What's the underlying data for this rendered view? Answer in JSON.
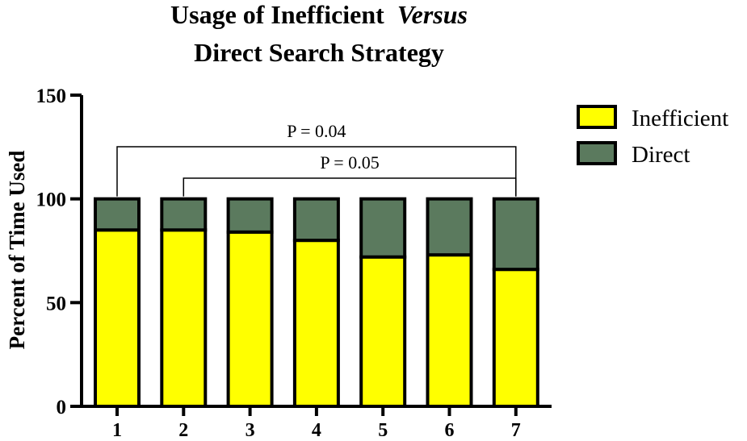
{
  "colors": {
    "inefficient": "#ffff00",
    "direct": "#5b7a5e",
    "outline": "#000000"
  },
  "chart_data": {
    "type": "bar",
    "stacked": true,
    "title_line1_prefix": "Usage of Inefficient",
    "title_line1_italic": "Versus",
    "title_line2": "Direct Search Strategy",
    "xlabel": "",
    "ylabel": "Percent of Time Used",
    "ylim": [
      0,
      150
    ],
    "yticks": [
      "0",
      "50",
      "100",
      "150"
    ],
    "categories": [
      "1",
      "2",
      "3",
      "4",
      "5",
      "6",
      "7"
    ],
    "series": [
      {
        "name": "Inefficient",
        "color": "#ffff00",
        "values": [
          85,
          85,
          84,
          80,
          72,
          73,
          66
        ]
      },
      {
        "name": "Direct",
        "color": "#5b7a5e",
        "values": [
          15,
          15,
          16,
          20,
          28,
          27,
          34
        ]
      }
    ],
    "legend_position": "top-right",
    "grid": false,
    "annotations": [
      {
        "text": "P = 0.04",
        "from": "1",
        "to": "7"
      },
      {
        "text": "P = 0.05",
        "from": "2",
        "to": "7"
      }
    ]
  }
}
